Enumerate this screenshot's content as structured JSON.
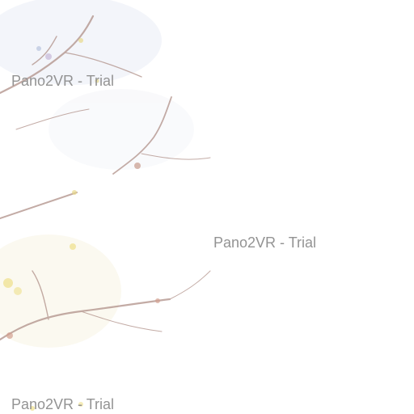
{
  "watermarks": [
    {
      "text": "Pano2VR - Trial"
    },
    {
      "text": "Pano2VR - Trial"
    },
    {
      "text": "Pano2VR - Trial"
    }
  ],
  "colors": {
    "background": "#ffffff",
    "watermark": "#8e8e8e",
    "branch": "#a88a80",
    "leaf_yellow": "#e8d98a",
    "sky_tint": "#b8c4de"
  }
}
